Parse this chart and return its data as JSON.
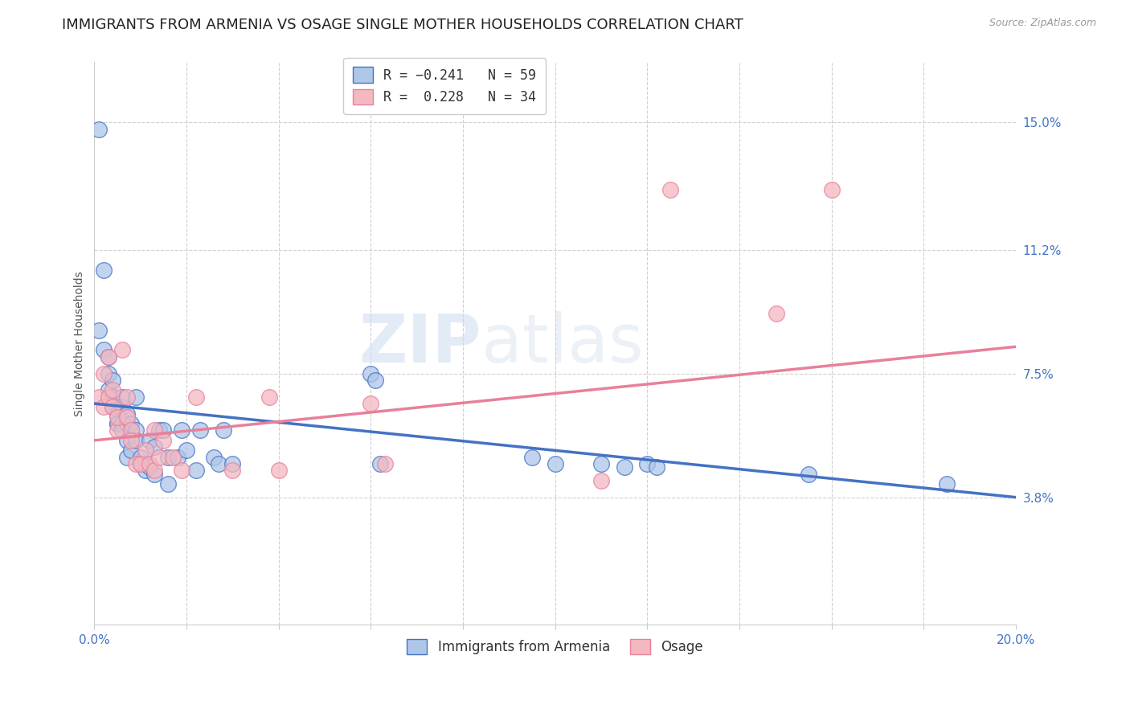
{
  "title": "IMMIGRANTS FROM ARMENIA VS OSAGE SINGLE MOTHER HOUSEHOLDS CORRELATION CHART",
  "source": "Source: ZipAtlas.com",
  "ylabel": "Single Mother Households",
  "x_min": 0.0,
  "x_max": 0.2,
  "y_min": 0.0,
  "y_max": 0.168,
  "x_ticks": [
    0.0,
    0.02,
    0.04,
    0.06,
    0.08,
    0.1,
    0.12,
    0.14,
    0.16,
    0.18,
    0.2
  ],
  "y_tick_labels_right": [
    "3.8%",
    "7.5%",
    "11.2%",
    "15.0%"
  ],
  "y_tick_values_right": [
    0.038,
    0.075,
    0.112,
    0.15
  ],
  "legend_title_blue": "Immigrants from Armenia",
  "legend_title_pink": "Osage",
  "color_blue": "#aec6e8",
  "color_pink": "#f4b8c1",
  "line_color_blue": "#4472c4",
  "line_color_pink": "#e8809a",
  "watermark": "ZIPatlas",
  "blue_points": [
    [
      0.001,
      0.148
    ],
    [
      0.002,
      0.106
    ],
    [
      0.001,
      0.088
    ],
    [
      0.002,
      0.082
    ],
    [
      0.003,
      0.08
    ],
    [
      0.003,
      0.075
    ],
    [
      0.003,
      0.07
    ],
    [
      0.004,
      0.073
    ],
    [
      0.004,
      0.068
    ],
    [
      0.004,
      0.065
    ],
    [
      0.005,
      0.065
    ],
    [
      0.005,
      0.06
    ],
    [
      0.005,
      0.063
    ],
    [
      0.005,
      0.06
    ],
    [
      0.006,
      0.065
    ],
    [
      0.006,
      0.068
    ],
    [
      0.006,
      0.06
    ],
    [
      0.006,
      0.058
    ],
    [
      0.007,
      0.06
    ],
    [
      0.007,
      0.063
    ],
    [
      0.007,
      0.055
    ],
    [
      0.007,
      0.05
    ],
    [
      0.008,
      0.06
    ],
    [
      0.008,
      0.052
    ],
    [
      0.009,
      0.068
    ],
    [
      0.009,
      0.058
    ],
    [
      0.009,
      0.055
    ],
    [
      0.01,
      0.05
    ],
    [
      0.01,
      0.048
    ],
    [
      0.011,
      0.046
    ],
    [
      0.011,
      0.048
    ],
    [
      0.012,
      0.055
    ],
    [
      0.012,
      0.047
    ],
    [
      0.013,
      0.053
    ],
    [
      0.013,
      0.045
    ],
    [
      0.014,
      0.058
    ],
    [
      0.015,
      0.058
    ],
    [
      0.016,
      0.042
    ],
    [
      0.016,
      0.05
    ],
    [
      0.018,
      0.05
    ],
    [
      0.019,
      0.058
    ],
    [
      0.02,
      0.052
    ],
    [
      0.022,
      0.046
    ],
    [
      0.023,
      0.058
    ],
    [
      0.026,
      0.05
    ],
    [
      0.027,
      0.048
    ],
    [
      0.028,
      0.058
    ],
    [
      0.03,
      0.048
    ],
    [
      0.06,
      0.075
    ],
    [
      0.061,
      0.073
    ],
    [
      0.062,
      0.048
    ],
    [
      0.095,
      0.05
    ],
    [
      0.1,
      0.048
    ],
    [
      0.11,
      0.048
    ],
    [
      0.115,
      0.047
    ],
    [
      0.12,
      0.048
    ],
    [
      0.122,
      0.047
    ],
    [
      0.155,
      0.045
    ],
    [
      0.185,
      0.042
    ]
  ],
  "pink_points": [
    [
      0.001,
      0.068
    ],
    [
      0.002,
      0.075
    ],
    [
      0.002,
      0.065
    ],
    [
      0.003,
      0.08
    ],
    [
      0.003,
      0.068
    ],
    [
      0.004,
      0.07
    ],
    [
      0.004,
      0.065
    ],
    [
      0.005,
      0.058
    ],
    [
      0.005,
      0.062
    ],
    [
      0.006,
      0.082
    ],
    [
      0.007,
      0.068
    ],
    [
      0.007,
      0.062
    ],
    [
      0.008,
      0.058
    ],
    [
      0.008,
      0.055
    ],
    [
      0.009,
      0.048
    ],
    [
      0.01,
      0.048
    ],
    [
      0.011,
      0.052
    ],
    [
      0.012,
      0.048
    ],
    [
      0.013,
      0.046
    ],
    [
      0.013,
      0.058
    ],
    [
      0.014,
      0.05
    ],
    [
      0.015,
      0.055
    ],
    [
      0.017,
      0.05
    ],
    [
      0.019,
      0.046
    ],
    [
      0.022,
      0.068
    ],
    [
      0.03,
      0.046
    ],
    [
      0.038,
      0.068
    ],
    [
      0.04,
      0.046
    ],
    [
      0.06,
      0.066
    ],
    [
      0.063,
      0.048
    ],
    [
      0.11,
      0.043
    ],
    [
      0.125,
      0.13
    ],
    [
      0.148,
      0.093
    ],
    [
      0.16,
      0.13
    ]
  ],
  "blue_line": {
    "x0": 0.0,
    "y0": 0.066,
    "x1": 0.2,
    "y1": 0.038
  },
  "pink_line": {
    "x0": 0.0,
    "y0": 0.055,
    "x1": 0.2,
    "y1": 0.083
  },
  "grid_color": "#d0d0d0",
  "background_color": "#ffffff",
  "title_fontsize": 13,
  "axis_fontsize": 10,
  "tick_fontsize": 11
}
